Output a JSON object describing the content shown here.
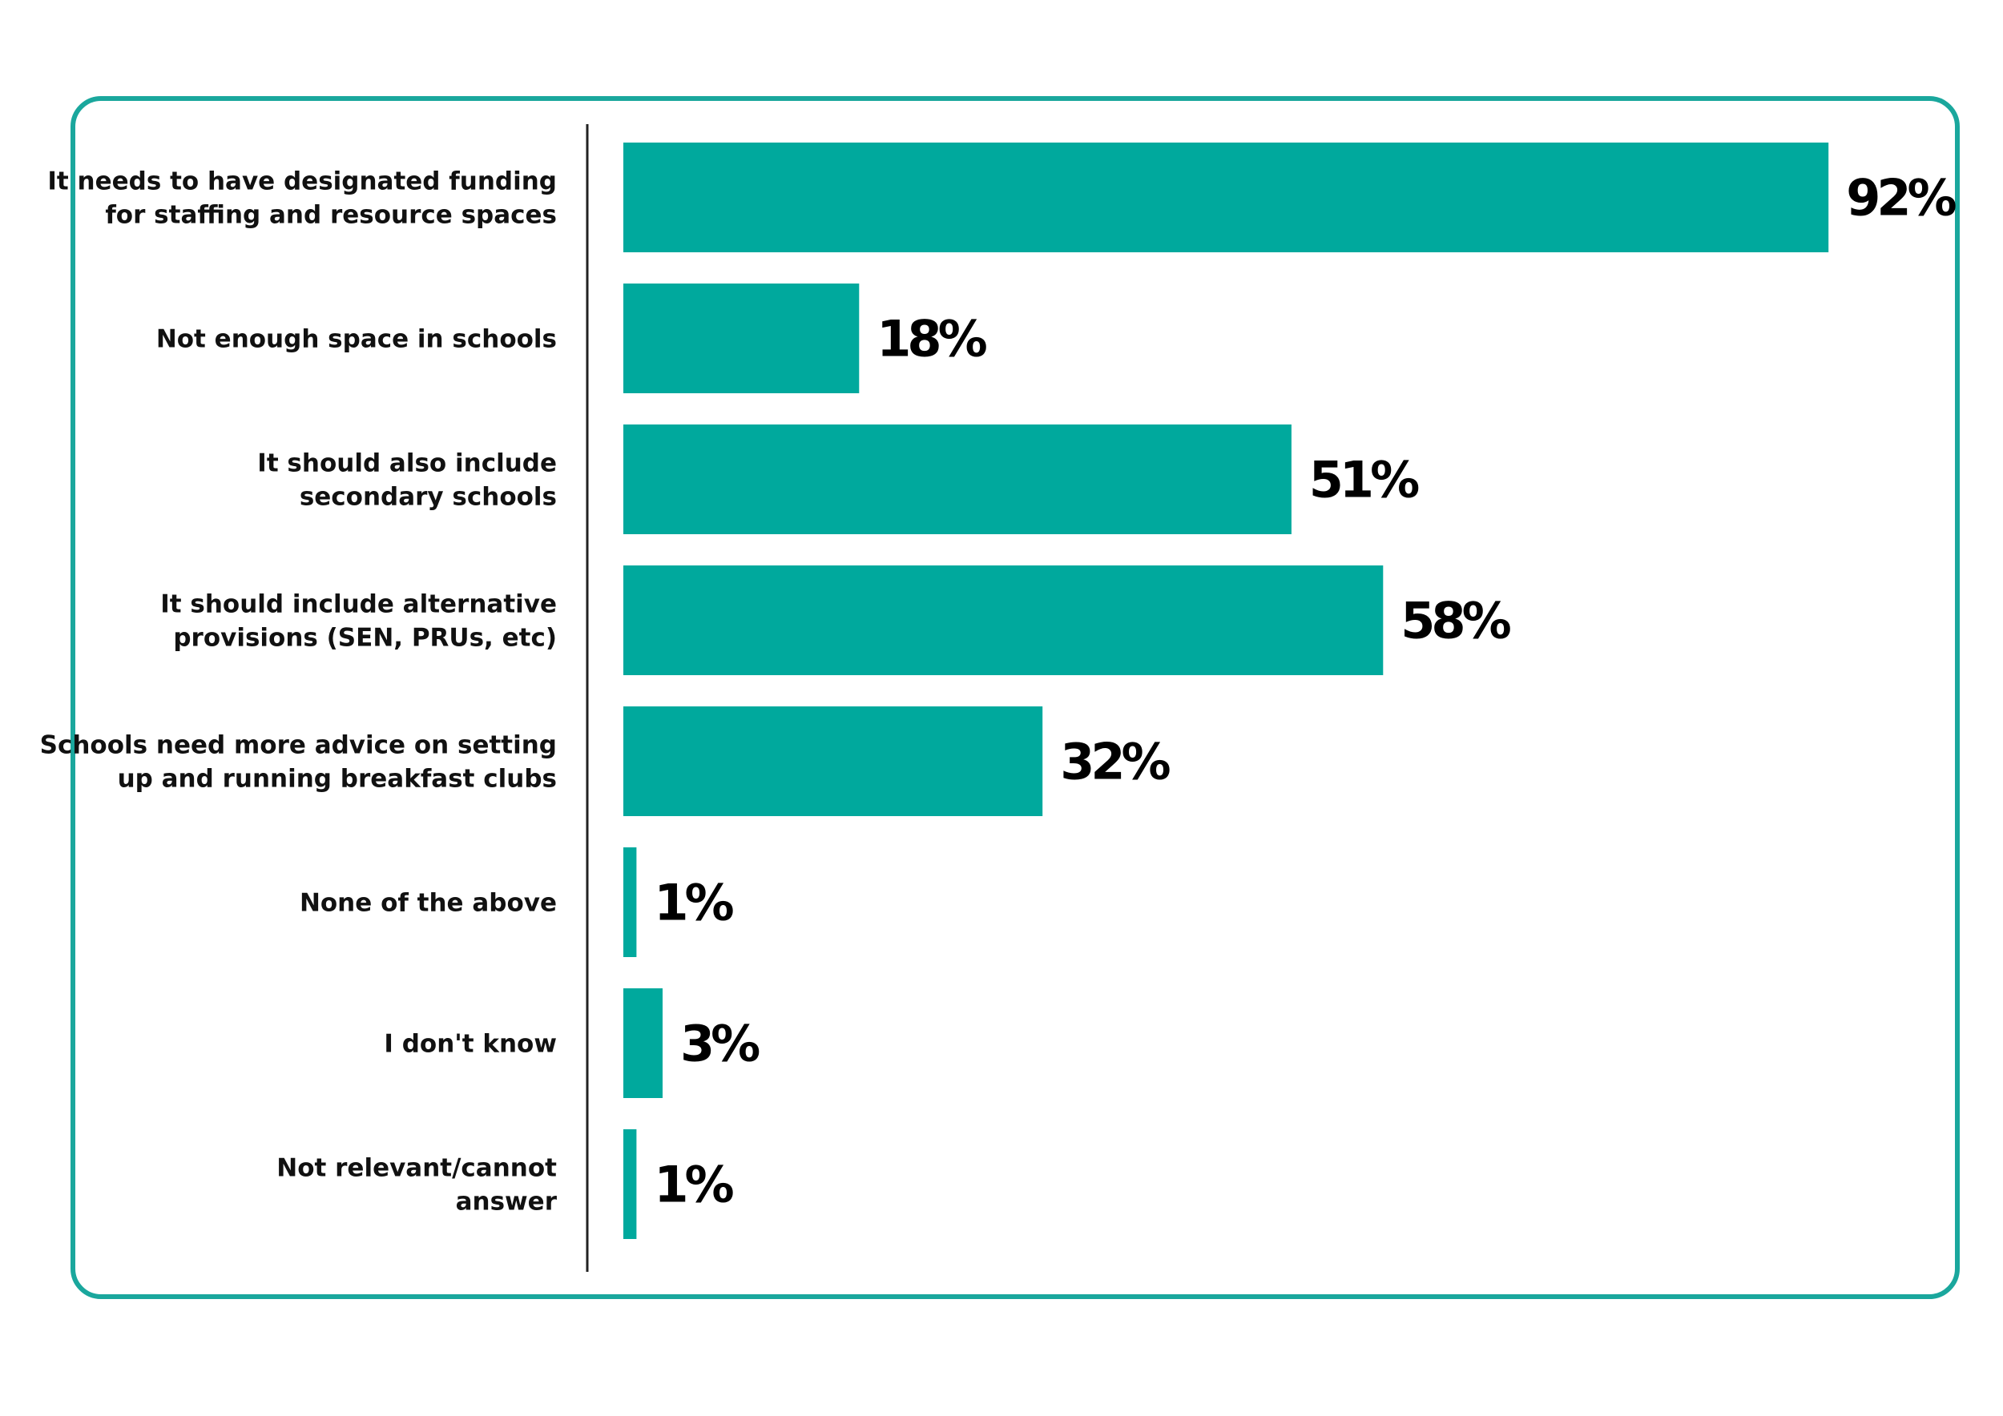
{
  "chart_data": {
    "type": "bar",
    "orientation": "horizontal",
    "categories": [
      [
        "It needs to have designated funding",
        "for staffing and resource spaces"
      ],
      [
        "Not enough space in schools"
      ],
      [
        "It should also include",
        "secondary schools"
      ],
      [
        "It should include alternative",
        "provisions (SEN, PRUs, etc)"
      ],
      [
        "Schools need more advice on setting",
        "up and running breakfast clubs"
      ],
      [
        "None of the above"
      ],
      [
        "I don't know"
      ],
      [
        "Not relevant/cannot",
        "answer"
      ]
    ],
    "values": [
      92,
      18,
      51,
      58,
      32,
      1,
      3,
      1
    ],
    "value_labels": [
      "92%",
      "18%",
      "51%",
      "58%",
      "32%",
      "1%",
      "3%",
      "1%"
    ],
    "xlim": [
      0,
      100
    ],
    "grid": false,
    "colors": {
      "bar": "#00a99d",
      "frame": "#1aa79d",
      "axis": "#222222"
    }
  }
}
